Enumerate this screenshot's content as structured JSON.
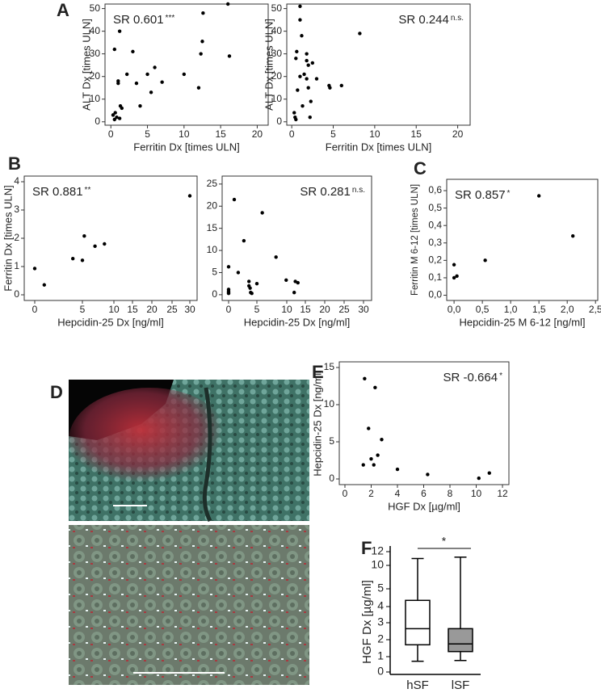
{
  "chart_data": [
    {
      "type": "scatter",
      "panel": "A",
      "annotation": "SR 0.601",
      "significance": "***",
      "xlabel": "Ferritin Dx [times ULN]",
      "ylabel": "ALT Dx [times ULN]",
      "x": [
        0.3,
        0.5,
        0.6,
        0.8,
        0.5,
        1,
        1,
        1.2,
        1.3,
        1.5,
        1.2,
        2.2,
        3,
        3.5,
        4,
        5,
        5.5,
        6,
        7,
        10,
        12,
        12.3,
        12.5,
        12.6,
        16,
        16.2
      ],
      "values": [
        3,
        1,
        4,
        2,
        32,
        17,
        18,
        40,
        7,
        6,
        1.5,
        21,
        31,
        17,
        7,
        21,
        13,
        24,
        17.5,
        21,
        15,
        30,
        35.5,
        48,
        52,
        29
      ],
      "color": "#000000",
      "xlim": [
        -0.8,
        21.5
      ],
      "ylim": [
        -1.5,
        52
      ],
      "xticks": [
        0,
        5,
        10,
        15,
        20
      ],
      "yticks": [
        0,
        10,
        20,
        30,
        40,
        50
      ]
    },
    {
      "type": "scatter",
      "annotation": "SR 0.244",
      "significance": "n.s.",
      "xlabel": "Ferritin Dx [times ULN]",
      "ylabel": "ALT Dx [times ULN]",
      "x": [
        0.3,
        0.4,
        0.5,
        0.7,
        0.5,
        0.6,
        1,
        1,
        1.2,
        1.5,
        1.3,
        1.8,
        1.8,
        2,
        2,
        2.3,
        2.5,
        2.2,
        1,
        3,
        4.5,
        4.6,
        6,
        8.2,
        1.8
      ],
      "values": [
        4,
        2,
        1,
        14,
        28,
        31,
        51,
        45,
        38,
        21,
        7,
        30,
        19,
        25,
        15,
        9,
        26,
        2,
        20,
        19,
        16,
        15,
        16,
        39,
        27
      ],
      "color": "#000000",
      "xlim": [
        -0.6,
        21.5
      ],
      "ylim": [
        -1.5,
        52
      ],
      "xticks": [
        0,
        5,
        10,
        15,
        20
      ],
      "yticks": [
        0,
        10,
        20,
        30,
        40,
        50
      ]
    },
    {
      "type": "scatter",
      "panel": "B",
      "annotation": "SR 0.881",
      "significance": "**",
      "xlabel": "Hepcidin-25 Dx [ng/ml]",
      "ylabel": "Ferritin Dx [times ULN]",
      "x": [
        0,
        1,
        4,
        5,
        5.3,
        7,
        8.5,
        30
      ],
      "values": [
        0.93,
        0.35,
        1.28,
        1.22,
        2.08,
        1.72,
        1.8,
        3.5
      ],
      "color": "#000000",
      "ylim": [
        -0.2,
        4.2
      ],
      "xticks": [
        0,
        5,
        10,
        15,
        20,
        25,
        30
      ],
      "yticks": [
        0,
        1,
        2,
        3,
        4
      ]
    },
    {
      "type": "scatter",
      "annotation": "SR 0.281",
      "significance": "n.s.",
      "xlabel": "Hepcidin-25 Dx [ng/ml]",
      "x": [
        0,
        0,
        0,
        0,
        0,
        1,
        1.7,
        2.7,
        3.6,
        3.6,
        3.8,
        3.9,
        4.1,
        5,
        5.9,
        8.2,
        9.9,
        12,
        12.3,
        13
      ],
      "values": [
        0.3,
        0.8,
        1.2,
        0.5,
        6.3,
        21.5,
        5,
        12.2,
        3,
        2,
        1.5,
        0.5,
        0.3,
        2.5,
        18.5,
        8.5,
        3.3,
        0.5,
        3,
        2.7
      ],
      "color": "#000000",
      "ylim": [
        -1.3,
        26.8
      ],
      "xticks": [
        0,
        5,
        10,
        15,
        20,
        25,
        30
      ],
      "yticks": [
        0,
        5,
        10,
        15,
        20,
        25
      ]
    },
    {
      "type": "scatter",
      "panel": "C",
      "annotation": "SR 0.857",
      "significance": "*",
      "xlabel": "Hepcidin-25 M 6-12 [ng/ml]",
      "ylabel": "Ferritin M 6-12 [times ULN]",
      "x": [
        0,
        0,
        0.05,
        0.55,
        1.5,
        2.1
      ],
      "values": [
        0.1,
        0.175,
        0.11,
        0.2,
        0.57,
        0.34
      ],
      "color": "#000000",
      "xlim": [
        -0.13,
        2.54
      ],
      "ylim": [
        -0.03,
        0.665
      ],
      "xticks": [
        {
          "value": 0,
          "label": "0,0"
        },
        {
          "value": 0.5,
          "label": "0,5"
        },
        {
          "value": 1,
          "label": "1,0"
        },
        {
          "value": 1.5,
          "label": "1,5"
        },
        {
          "value": 2,
          "label": "2,0"
        },
        {
          "value": 2.5,
          "label": "2,5"
        }
      ],
      "yticks": [
        {
          "value": 0,
          "label": "0,0"
        },
        {
          "value": 0.1,
          "label": "0,1"
        },
        {
          "value": 0.2,
          "label": "0,2"
        },
        {
          "value": 0.3,
          "label": "0,3"
        },
        {
          "value": 0.4,
          "label": "0,4"
        },
        {
          "value": 0.5,
          "label": "0,5"
        },
        {
          "value": 0.6,
          "label": "0,6"
        }
      ]
    },
    {
      "type": "scatter",
      "panel": "E",
      "annotation": "SR -0.664",
      "significance": "*",
      "xlabel": "HGF Dx [µg/ml]",
      "ylabel": "Hepcidin-25 Dx [ng/ml]",
      "x": [
        1.5,
        1.8,
        2.3,
        1.4,
        2,
        2.2,
        2.5,
        2.8,
        4,
        6.3,
        10.2,
        11
      ],
      "values": [
        13.5,
        6.8,
        12.3,
        1.9,
        2.7,
        1.9,
        3.2,
        5.3,
        1.3,
        0.6,
        0.1,
        0.8
      ],
      "color": "#000000",
      "xlim": [
        -0.43,
        12.49
      ],
      "ylim": [
        -0.76,
        15.76
      ],
      "xticks": [
        0,
        2,
        4,
        6,
        8,
        10,
        12
      ],
      "yticks": [
        0,
        5,
        10,
        15
      ]
    },
    {
      "type": "box",
      "panel": "F",
      "ylabel": "HGF Dx [µg/ml]",
      "significance": "*",
      "categories": [
        "hSF",
        "lSF"
      ],
      "colors": [
        "#ffffff",
        "#999999"
      ],
      "boxes": [
        {
          "min": 0.7,
          "q1": 1.7,
          "median": 2.65,
          "q3": 4.35,
          "max": 11
        },
        {
          "min": 0.75,
          "q1": 1.3,
          "median": 1.75,
          "q3": 2.65,
          "max": 11.2
        }
      ],
      "yticks": [
        0,
        1,
        2,
        3,
        4,
        5,
        10,
        12
      ]
    }
  ],
  "image_panel": {
    "panel": "D"
  }
}
